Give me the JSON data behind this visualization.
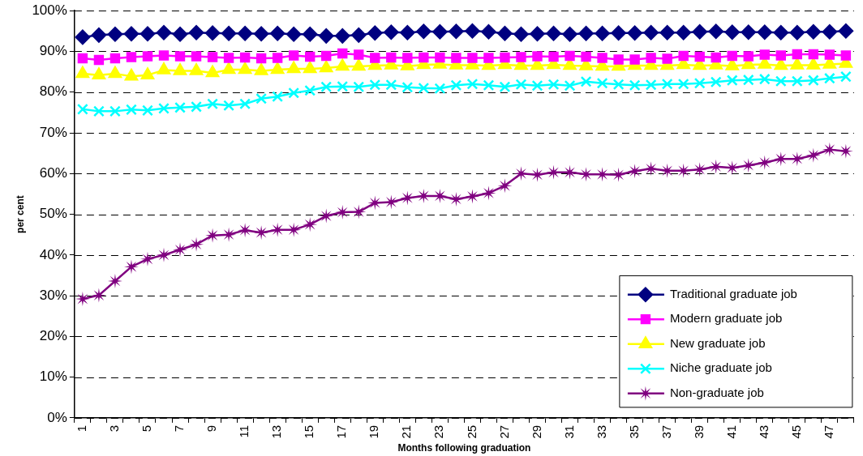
{
  "chart_data": {
    "type": "line",
    "xlabel": "Months following graduation",
    "ylabel": "per cent",
    "categories": [
      "1",
      null,
      "3",
      null,
      "5",
      null,
      "7",
      null,
      "9",
      null,
      "11",
      null,
      "13",
      null,
      "15",
      null,
      "17",
      null,
      "19",
      null,
      "21",
      null,
      "23",
      null,
      "25",
      null,
      "27",
      null,
      "29",
      null,
      "31",
      null,
      "33",
      null,
      "35",
      null,
      "37",
      null,
      "39",
      null,
      "41",
      null,
      "43",
      null,
      "45",
      null,
      "47",
      null
    ],
    "ylim": [
      0,
      100
    ],
    "yticks": [
      {
        "value": 0,
        "label": "0%"
      },
      {
        "value": 10,
        "label": "10%"
      },
      {
        "value": 20,
        "label": "20%"
      },
      {
        "value": 30,
        "label": "30%"
      },
      {
        "value": 40,
        "label": "40%"
      },
      {
        "value": 50,
        "label": "50%"
      },
      {
        "value": 60,
        "label": "60%"
      },
      {
        "value": 70,
        "label": "70%"
      },
      {
        "value": 80,
        "label": "80%"
      },
      {
        "value": 90,
        "label": "90%"
      },
      {
        "value": 100,
        "label": "100%"
      }
    ],
    "grid": "y",
    "legend": "bottom right",
    "line_style": "solid",
    "series": [
      {
        "name": "Traditional graduate job",
        "color": "#000080",
        "marker": "diamond",
        "values": [
          93.5,
          94,
          94.2,
          94.3,
          94.3,
          94.6,
          94.2,
          94.6,
          94.5,
          94.4,
          94.4,
          94.3,
          94.4,
          94.2,
          94.2,
          93.8,
          93.8,
          94,
          94.5,
          94.7,
          94.6,
          94.9,
          94.8,
          94.9,
          95,
          94.8,
          94.4,
          94.2,
          94.3,
          94.4,
          94.2,
          94.4,
          94.4,
          94.5,
          94.5,
          94.6,
          94.6,
          94.6,
          94.8,
          94.9,
          94.7,
          94.7,
          94.7,
          94.6,
          94.6,
          94.8,
          94.8,
          95
        ]
      },
      {
        "name": "Modern graduate job",
        "color": "#ff00ff",
        "marker": "square",
        "values": [
          88.3,
          87.9,
          88.3,
          88.6,
          88.8,
          89,
          88.8,
          88.8,
          88.6,
          88.4,
          88.5,
          88.3,
          88.4,
          89,
          88.7,
          88.9,
          89.5,
          89.2,
          88.4,
          88.5,
          88.4,
          88.5,
          88.5,
          88.4,
          88.4,
          88.4,
          88.5,
          88.6,
          88.8,
          88.7,
          88.9,
          88.7,
          88.4,
          88,
          88,
          88.4,
          88.2,
          88.9,
          88.7,
          88.5,
          88.9,
          88.8,
          89.2,
          89,
          89.3,
          89.3,
          89.2,
          89
        ]
      },
      {
        "name": "New graduate job",
        "color": "#ffff00",
        "marker": "triangle",
        "values": [
          84.5,
          84.2,
          84.5,
          83.9,
          84.2,
          85.4,
          85.2,
          85.2,
          84.7,
          85.5,
          85.5,
          85.2,
          85.5,
          85.7,
          85.7,
          85.9,
          86.3,
          86.3,
          86.5,
          86.6,
          86.4,
          86.7,
          86.8,
          86.6,
          86.6,
          86.5,
          86.7,
          86.5,
          86.5,
          86.7,
          86.5,
          86.4,
          86.3,
          86.3,
          86.5,
          86.5,
          86.5,
          86.7,
          86.5,
          86.6,
          86.4,
          86.7,
          86.8,
          86.5,
          86.6,
          86.6,
          86.8,
          87
        ]
      },
      {
        "name": "Niche graduate job",
        "color": "#00ffff",
        "marker": "cross",
        "values": [
          75.8,
          75.3,
          75.3,
          75.7,
          75.5,
          76,
          76.2,
          76.4,
          77.1,
          76.7,
          77.1,
          78.4,
          78.9,
          79.8,
          80.4,
          81.3,
          81.4,
          81.3,
          81.8,
          81.8,
          81.2,
          81,
          80.9,
          81.7,
          82,
          81.7,
          81.3,
          81.9,
          81.6,
          81.9,
          81.6,
          82.6,
          82.2,
          81.9,
          81.7,
          81.8,
          82,
          82,
          82.2,
          82.5,
          82.9,
          83,
          83.2,
          82.7,
          82.7,
          82.9,
          83.4,
          83.8
        ]
      },
      {
        "name": "Non-graduate job",
        "color": "#800080",
        "marker": "star",
        "values": [
          29.2,
          30.1,
          33.6,
          37.1,
          39,
          40,
          41.3,
          42.6,
          44.8,
          45,
          46.1,
          45.5,
          46.2,
          46.2,
          47.5,
          49.6,
          50.5,
          50.6,
          52.8,
          53,
          54,
          54.5,
          54.5,
          53.7,
          54.4,
          55.2,
          57,
          60,
          59.7,
          60.3,
          60.3,
          59.8,
          59.8,
          59.7,
          60.6,
          61.2,
          60.7,
          60.7,
          61,
          61.7,
          61.4,
          62,
          62.7,
          63.6,
          63.6,
          64.5,
          65.9,
          65.5
        ]
      }
    ]
  }
}
